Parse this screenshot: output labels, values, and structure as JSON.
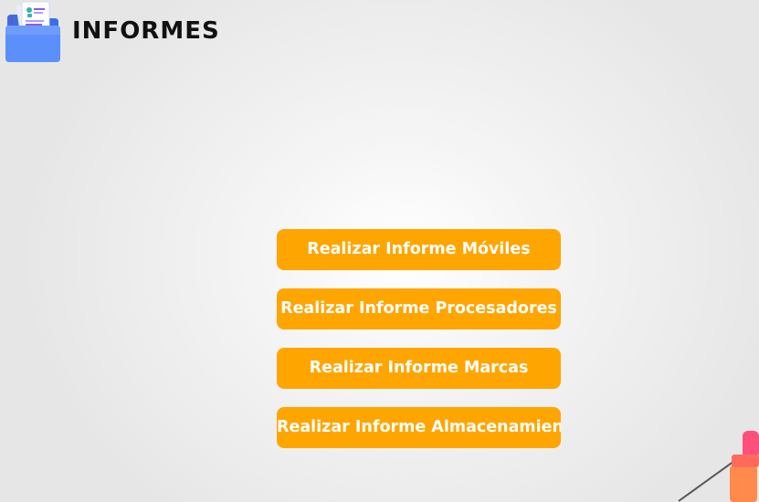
{
  "header": {
    "title": "INFORMES",
    "icon": "report-folder-icon"
  },
  "buttons": [
    {
      "label": "Realizar Informe Móviles"
    },
    {
      "label": "Realizar Informe Procesadores"
    },
    {
      "label": "Realizar Informe Marcas"
    },
    {
      "label": "Realizar Informe Almacenamiento"
    }
  ],
  "colors": {
    "button_background": "#ffa500",
    "button_text": "#ffffff",
    "title_text": "#111111",
    "folder_blue": "#4f86f7"
  }
}
